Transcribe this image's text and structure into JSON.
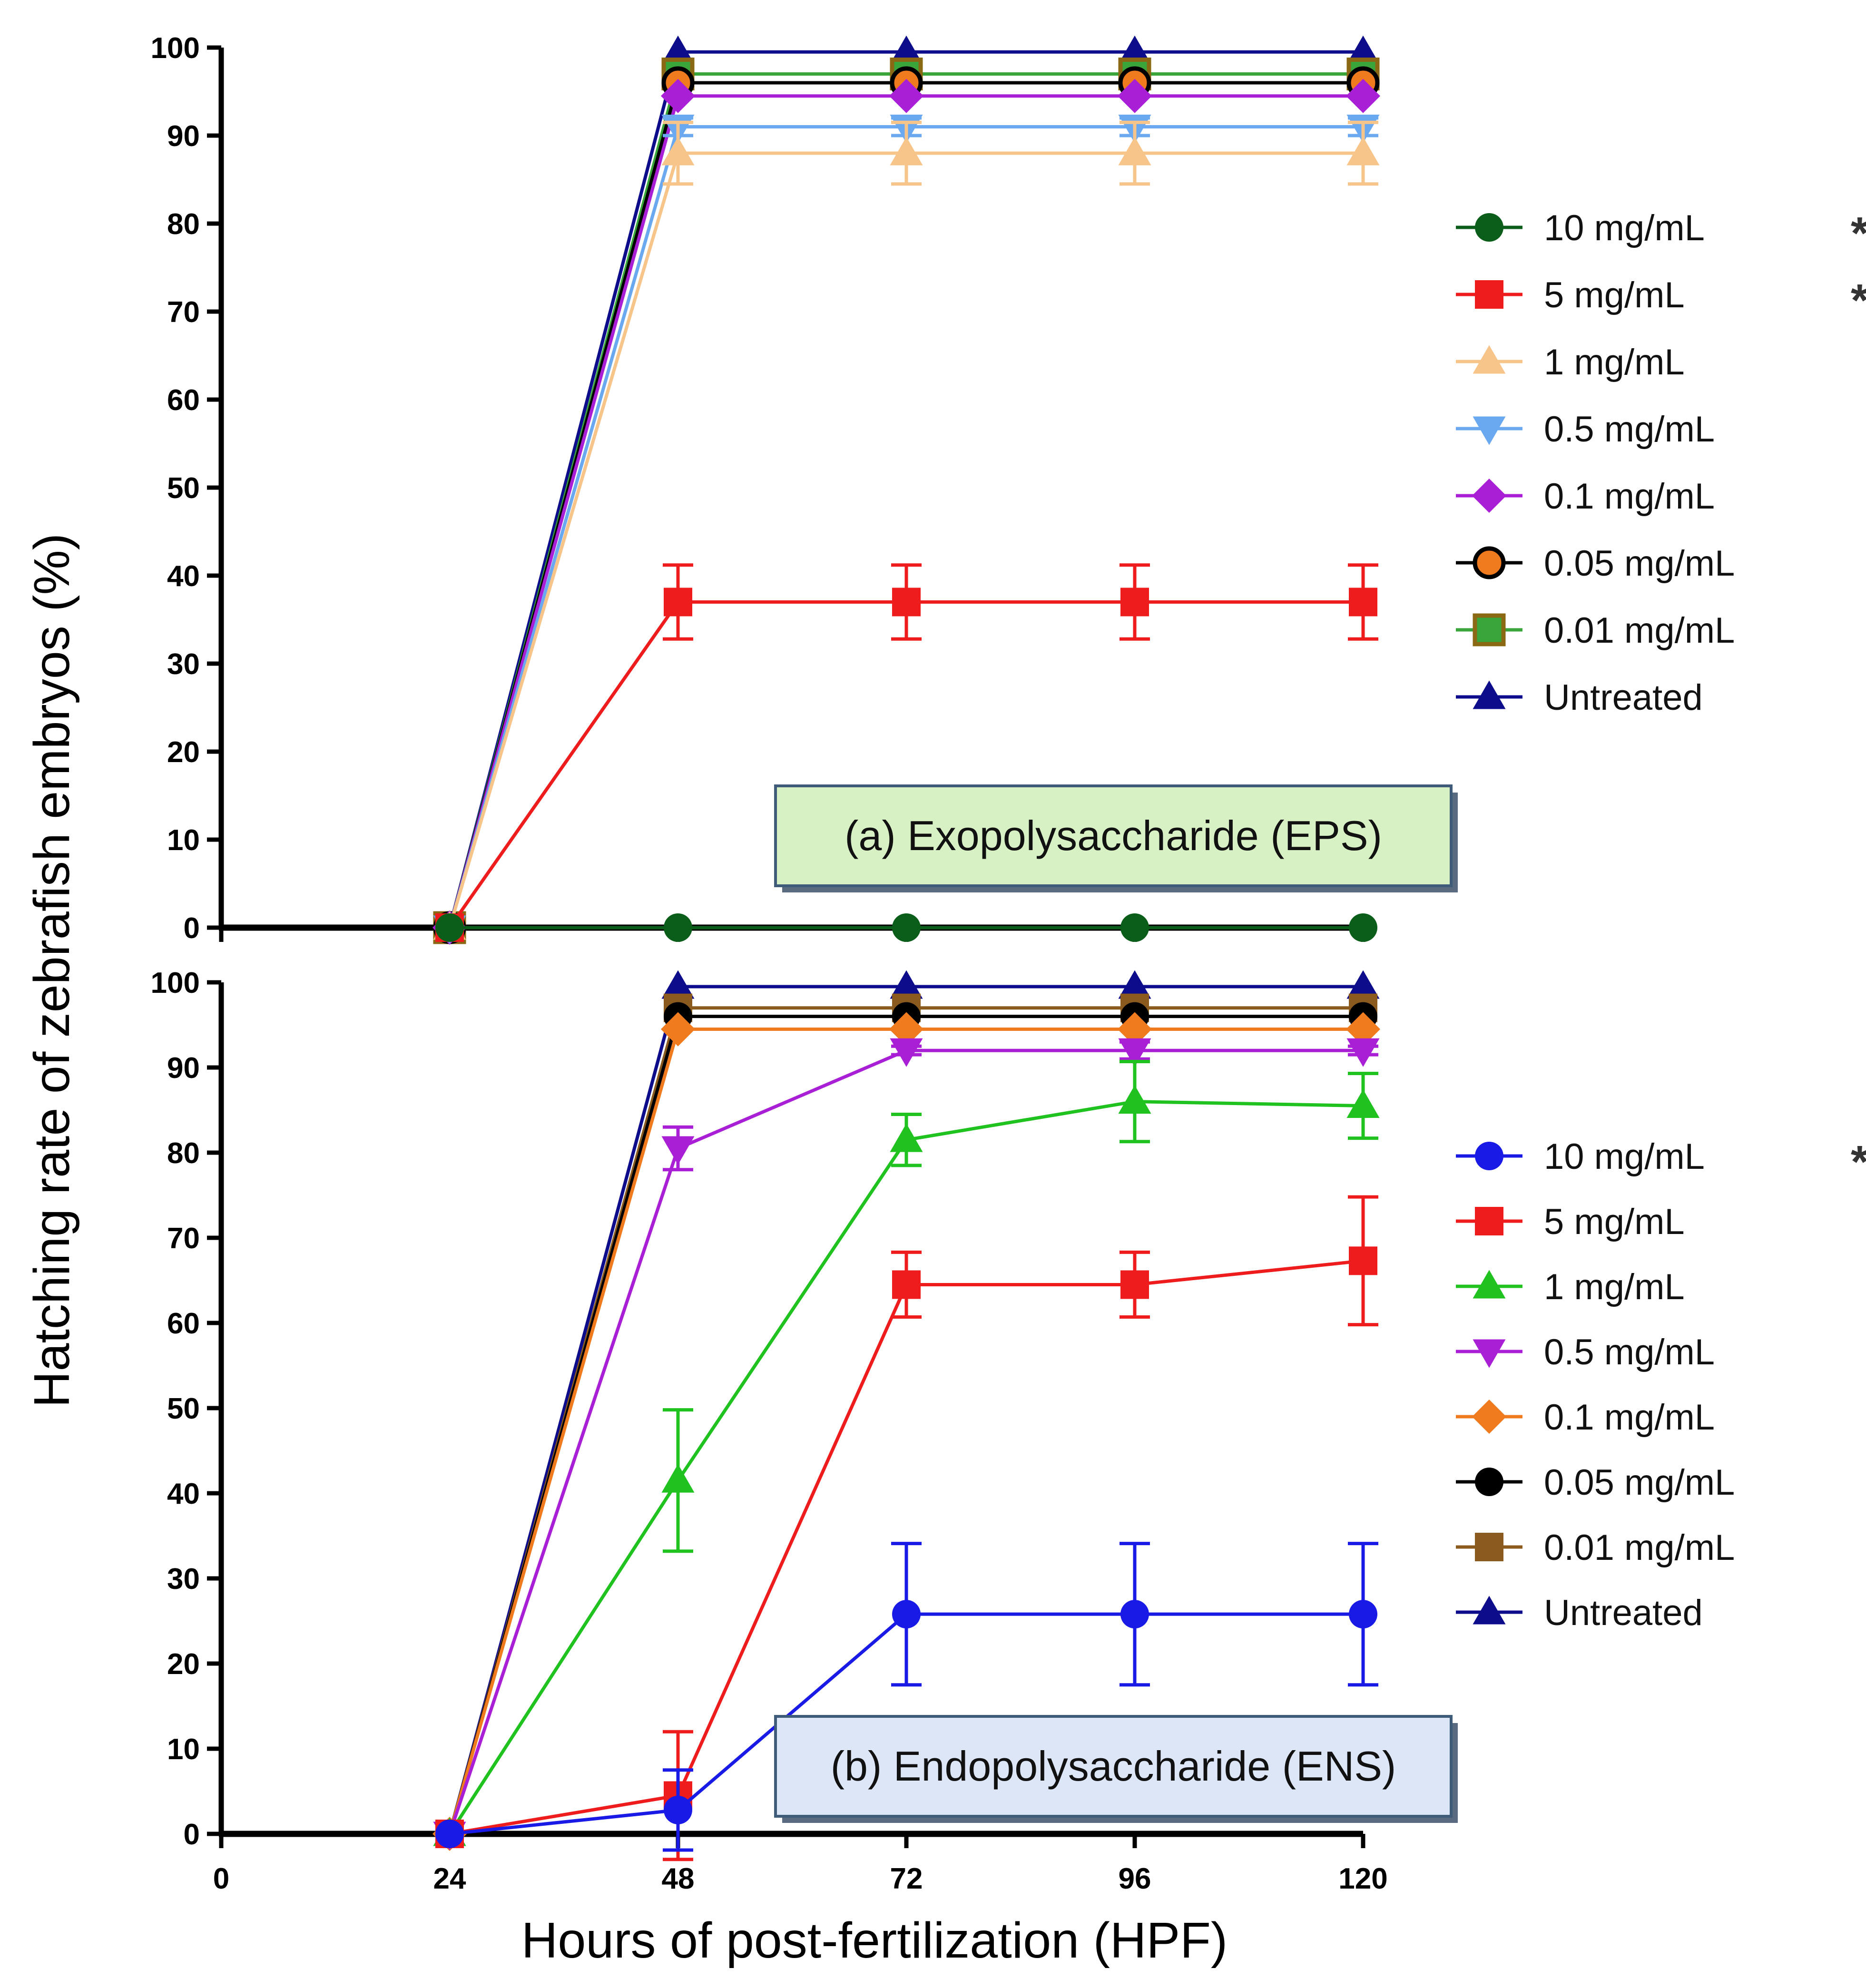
{
  "chart_data": {
    "type": "line",
    "ylabel": "Hatching rate of zebrafish embryos (%)",
    "xlabel": "Hours of post-fertilization (HPF)",
    "xlim": [
      0,
      120
    ],
    "x_ticks": [
      "0",
      "24",
      "48",
      "72",
      "96",
      "120"
    ],
    "x": [
      24,
      48,
      72,
      96,
      120
    ],
    "panels": [
      {
        "id": "a",
        "label": "(a) Exopolysaccharide (EPS)",
        "label_color": "#d7f0c4",
        "ylim": [
          0,
          100
        ],
        "y_ticks": [
          "0",
          "10",
          "20",
          "30",
          "40",
          "50",
          "60",
          "70",
          "80",
          "90",
          "100"
        ],
        "series": [
          {
            "name": "Untreated",
            "sig": "",
            "color": "#0d0d8c",
            "marker": "triangle-up",
            "values": [
              0,
              99.5,
              99.5,
              99.5,
              99.5
            ],
            "err": [
              0,
              0,
              0,
              0,
              0
            ]
          },
          {
            "name": "0.01 mg/mL",
            "sig": "",
            "color": "#3aa53a",
            "marker_edge": "#8b6914",
            "marker": "square",
            "values": [
              0,
              97,
              97,
              97,
              97
            ],
            "err": [
              0,
              0,
              0,
              0,
              0
            ]
          },
          {
            "name": "0.05 mg/mL",
            "sig": "",
            "color": "#f07a1e",
            "marker_edge": "#000000",
            "line_color": "#000000",
            "marker": "circle",
            "values": [
              0,
              96,
              96,
              96,
              96
            ],
            "err": [
              0,
              0,
              0,
              0,
              0
            ]
          },
          {
            "name": "0.1 mg/mL",
            "sig": "",
            "color": "#a81fd6",
            "marker": "diamond",
            "values": [
              0,
              94.5,
              94.5,
              94.5,
              94.5
            ],
            "err": [
              0,
              0,
              0,
              0,
              0
            ]
          },
          {
            "name": "0.5 mg/mL",
            "sig": "",
            "color": "#6aa8f0",
            "marker": "triangle-down",
            "values": [
              0,
              91,
              91,
              91,
              91
            ],
            "err": [
              0,
              1,
              1,
              1,
              1
            ]
          },
          {
            "name": "1 mg/mL",
            "sig": "*",
            "color": "#f7c48a",
            "marker": "triangle-up",
            "values": [
              0,
              88,
              88,
              88,
              88
            ],
            "err": [
              0,
              3.5,
              3.5,
              3.5,
              3.5
            ]
          },
          {
            "name": "5 mg/mL",
            "sig": "***",
            "color": "#ee1c1c",
            "marker": "square",
            "values": [
              0,
              37,
              37,
              37,
              37
            ],
            "err": [
              0,
              4.2,
              4.2,
              4.2,
              4.2
            ]
          },
          {
            "name": "10 mg/mL",
            "sig": "***",
            "color": "#0b5e1a",
            "marker": "circle",
            "values": [
              0,
              0,
              0,
              0,
              0
            ],
            "err": [
              0,
              0,
              0,
              0,
              0
            ]
          }
        ],
        "legend_order": [
          "10 mg/mL",
          "5 mg/mL",
          "1 mg/mL",
          "0.5 mg/mL",
          "0.1 mg/mL",
          "0.05 mg/mL",
          "0.01 mg/mL",
          "Untreated"
        ]
      },
      {
        "id": "b",
        "label": "(b) Endopolysaccharide (ENS)",
        "label_color": "#dde6f7",
        "ylim": [
          0,
          100
        ],
        "y_ticks": [
          "0",
          "10",
          "20",
          "30",
          "40",
          "50",
          "60",
          "70",
          "80",
          "90",
          "100"
        ],
        "series": [
          {
            "name": "Untreated",
            "sig": "",
            "color": "#0d0d8c",
            "marker": "triangle-up",
            "values": [
              0,
              99.5,
              99.5,
              99.5,
              99.5
            ],
            "err": [
              0,
              0,
              0,
              0,
              0
            ]
          },
          {
            "name": "0.01 mg/mL",
            "sig": "",
            "color": "#8b5a1e",
            "marker": "square",
            "values": [
              0,
              97,
              97,
              97,
              97
            ],
            "err": [
              0,
              0,
              0,
              0,
              0
            ]
          },
          {
            "name": "0.05 mg/mL",
            "sig": "",
            "color": "#000000",
            "marker": "circle",
            "values": [
              0,
              96,
              96,
              96,
              96
            ],
            "err": [
              0,
              0,
              0,
              0,
              0
            ]
          },
          {
            "name": "0.1 mg/mL",
            "sig": "",
            "color": "#f07a1e",
            "marker": "diamond",
            "values": [
              0,
              94.5,
              94.5,
              94.5,
              94.5
            ],
            "err": [
              0,
              0,
              0,
              0,
              0
            ]
          },
          {
            "name": "0.5 mg/mL",
            "sig": "*",
            "color": "#a81fd6",
            "marker": "triangle-down",
            "values": [
              0,
              80.5,
              92,
              92,
              92
            ],
            "err": [
              0,
              2.5,
              0.5,
              1,
              0.5
            ]
          },
          {
            "name": "1 mg/mL",
            "sig": "*",
            "color": "#1fc21f",
            "marker": "triangle-up",
            "values": [
              0,
              41.5,
              81.5,
              86,
              85.5
            ],
            "err": [
              0,
              8.3,
              3,
              4.7,
              3.8
            ]
          },
          {
            "name": "5 mg/mL",
            "sig": "**",
            "color": "#ee1c1c",
            "marker": "square",
            "values": [
              0,
              4.5,
              64.5,
              64.5,
              67.3
            ],
            "err": [
              0,
              7.5,
              3.8,
              3.8,
              7.5
            ]
          },
          {
            "name": "10 mg/mL",
            "sig": "***",
            "color": "#1a1ae6",
            "marker": "circle",
            "values": [
              0,
              2.8,
              25.8,
              25.8,
              25.8
            ],
            "err": [
              0,
              4.7,
              8.3,
              8.3,
              8.3
            ]
          }
        ],
        "legend_order": [
          "10 mg/mL",
          "5 mg/mL",
          "1 mg/mL",
          "0.5 mg/mL",
          "0.1 mg/mL",
          "0.05 mg/mL",
          "0.01 mg/mL",
          "Untreated"
        ]
      }
    ]
  }
}
